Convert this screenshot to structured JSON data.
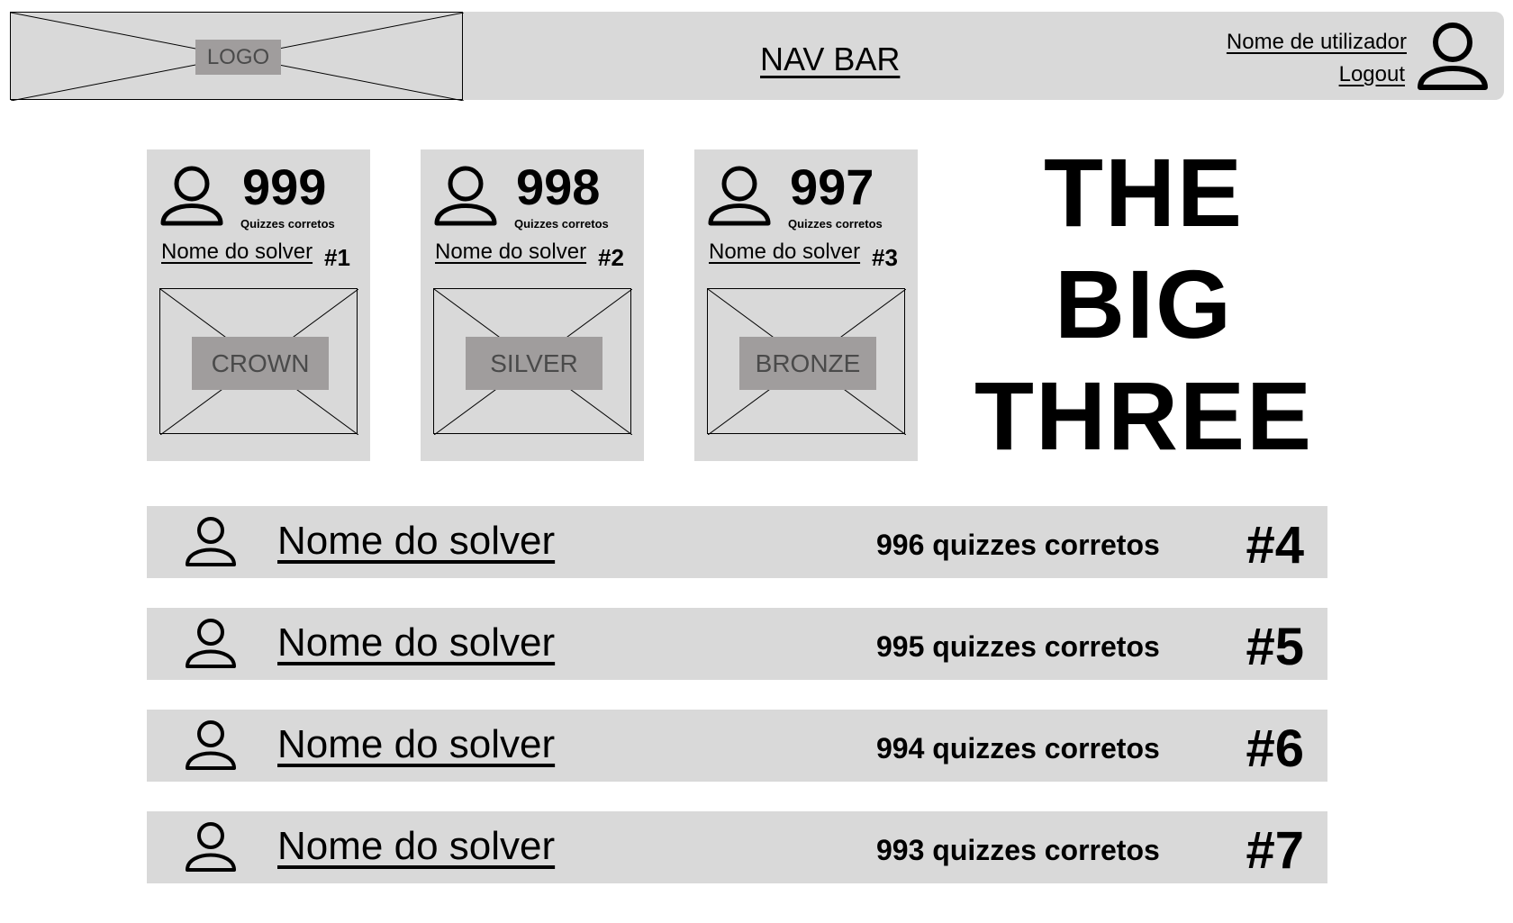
{
  "nav": {
    "logo_label": "LOGO",
    "title": "NAV BAR",
    "user_name": "Nome de utilizador",
    "logout_label": "Logout",
    "avatar_icon": "user-icon"
  },
  "podium": [
    {
      "score": "999",
      "score_label": "Quizzes corretos",
      "solver": "Nome do solver",
      "rank": "#1",
      "medal": "CROWN"
    },
    {
      "score": "998",
      "score_label": "Quizzes corretos",
      "solver": "Nome do solver",
      "rank": "#2",
      "medal": "SILVER"
    },
    {
      "score": "997",
      "score_label": "Quizzes corretos",
      "solver": "Nome do solver",
      "rank": "#3",
      "medal": "BRONZE"
    }
  ],
  "headline": {
    "line1": "THE",
    "line2": "BIG",
    "line3": "THREE"
  },
  "ranking": [
    {
      "solver": "Nome do solver",
      "count": "996 quizzes corretos",
      "rank": "#4"
    },
    {
      "solver": "Nome do solver",
      "count": "995 quizzes corretos",
      "rank": "#5"
    },
    {
      "solver": "Nome do solver",
      "count": "994 quizzes corretos",
      "rank": "#6"
    },
    {
      "solver": "Nome do solver",
      "count": "993 quizzes corretos",
      "rank": "#7"
    }
  ],
  "colors": {
    "panel": "#d9d9d9",
    "placeholder": "#a09d9d",
    "placeholder_text": "#4a4a4a"
  }
}
